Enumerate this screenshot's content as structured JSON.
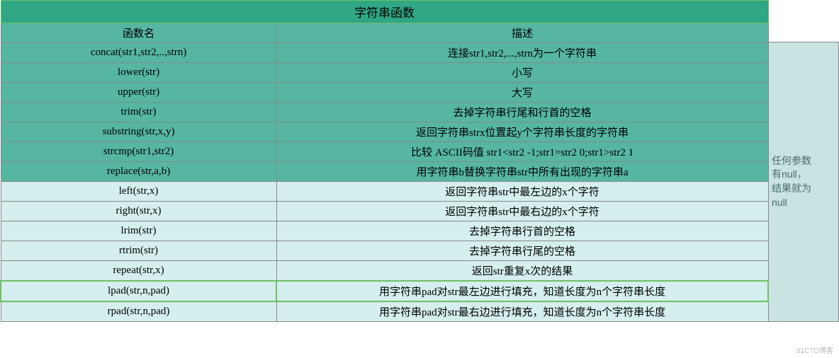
{
  "title": "字符串函数",
  "headers": {
    "func": "函数名",
    "desc": "描述"
  },
  "rows": [
    {
      "func": "concat(str1,str2,..,strn)",
      "desc": "连接str1,str2,...,strn为一个字符串",
      "style": "dark"
    },
    {
      "func": "lower(str)",
      "desc": "小写",
      "style": "dark"
    },
    {
      "func": "upper(str)",
      "desc": "大写",
      "style": "dark"
    },
    {
      "func": "trim(str)",
      "desc": "去掉字符串行尾和行首的空格",
      "style": "dark"
    },
    {
      "func": "substring(str,x,y)",
      "desc": "返回字符串strx位置起y个字符串长度的字符串",
      "style": "dark"
    },
    {
      "func": "strcmp(str1,str2)",
      "desc": "比较 ASCII码值 str1<str2 -1;str1=str2 0;str1>str2 1",
      "style": "dark"
    },
    {
      "func": "replace(str,a,b)",
      "desc": "用字符串b替换字符串str中所有出现的字符串a",
      "style": "dark"
    },
    {
      "func": "left(str,x)",
      "desc": "返回字符串str中最左边的x个字符",
      "style": "light"
    },
    {
      "func": "right(str,x)",
      "desc": "返回字符串str中最右边的x个字符",
      "style": "light"
    },
    {
      "func": "lrim(str)",
      "desc": "去掉字符串行首的空格",
      "style": "light"
    },
    {
      "func": "rtrim(str)",
      "desc": "去掉字符串行尾的空格",
      "style": "light"
    },
    {
      "func": "repeat(str,x)",
      "desc": "返回str重复x次的结果",
      "style": "light"
    },
    {
      "func": "lpad(str,n,pad)",
      "desc": "用字符串pad对str最左边进行填充，知道长度为n个字符串长度",
      "style": "highlight"
    },
    {
      "func": "rpad(str,n,pad)",
      "desc": "用字符串pad对str最右边进行填充，知道长度为n个字符串长度",
      "style": "light"
    }
  ],
  "sideNote": {
    "line1": "任何参数",
    "line2": "有null，",
    "line3": "结果就为",
    "line4": "null"
  },
  "watermark": "51CTO博客",
  "colors": {
    "titleBg": "#2fa785",
    "darkBg": "#56b6a2",
    "lightBg": "#d5eeee",
    "sideBg": "#c8e3e2",
    "highlightBorder": "#6fbf63",
    "border": "#888888"
  }
}
